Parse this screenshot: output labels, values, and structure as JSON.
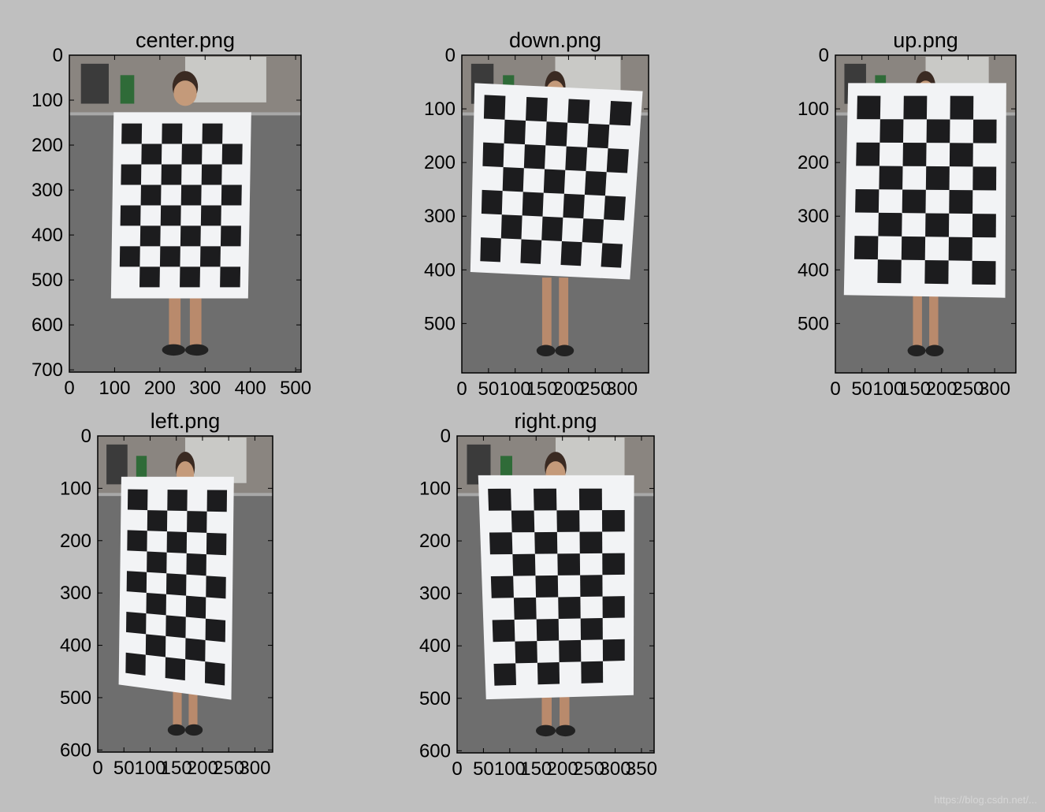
{
  "figure": {
    "background": "#bfbfbf",
    "watermark": "https://blog.csdn.net/..."
  },
  "panels": [
    {
      "id": "center",
      "title": "center.png",
      "image_size": [
        512,
        705
      ],
      "xticks": [
        "0",
        "100",
        "200",
        "300",
        "400",
        "500"
      ],
      "xtick_values": [
        0,
        100,
        200,
        300,
        400,
        500
      ],
      "yticks": [
        "0",
        "100",
        "200",
        "300",
        "400",
        "500",
        "600",
        "700"
      ],
      "ytick_values": [
        0,
        100,
        200,
        300,
        400,
        500,
        600,
        700
      ],
      "board": {
        "corners": [
          [
            98,
            127
          ],
          [
            402,
            127
          ],
          [
            395,
            541
          ],
          [
            92,
            541
          ]
        ],
        "cols": 6,
        "rows": 8
      }
    },
    {
      "id": "down",
      "title": "down.png",
      "image_size": [
        350,
        592
      ],
      "xticks": [
        "0",
        "50",
        "100",
        "150",
        "200",
        "250",
        "300"
      ],
      "xtick_values": [
        0,
        50,
        100,
        150,
        200,
        250,
        300
      ],
      "yticks": [
        "0",
        "100",
        "200",
        "300",
        "400",
        "500"
      ],
      "ytick_values": [
        0,
        100,
        200,
        300,
        400,
        500
      ],
      "board": {
        "corners": [
          [
            24,
            52
          ],
          [
            339,
            67
          ],
          [
            315,
            418
          ],
          [
            16,
            404
          ]
        ],
        "cols": 7,
        "rows": 7
      }
    },
    {
      "id": "up",
      "title": "up.png",
      "image_size": [
        340,
        592
      ],
      "xticks": [
        "0",
        "50",
        "100",
        "150",
        "200",
        "250",
        "300"
      ],
      "xtick_values": [
        0,
        50,
        100,
        150,
        200,
        250,
        300
      ],
      "yticks": [
        "0",
        "100",
        "200",
        "300",
        "400",
        "500"
      ],
      "ytick_values": [
        0,
        100,
        200,
        300,
        400,
        500
      ],
      "board": {
        "corners": [
          [
            24,
            52
          ],
          [
            322,
            52
          ],
          [
            320,
            452
          ],
          [
            16,
            447
          ]
        ],
        "cols": 6,
        "rows": 8
      }
    },
    {
      "id": "left",
      "title": "left.png",
      "image_size": [
        334,
        604
      ],
      "xticks": [
        "0",
        "50",
        "100",
        "150",
        "200",
        "250",
        "300"
      ],
      "xtick_values": [
        0,
        50,
        100,
        150,
        200,
        250,
        300
      ],
      "yticks": [
        "0",
        "100",
        "200",
        "300",
        "400",
        "500",
        "600"
      ],
      "ytick_values": [
        0,
        100,
        200,
        300,
        400,
        500,
        600
      ],
      "board": {
        "corners": [
          [
            45,
            78
          ],
          [
            260,
            78
          ],
          [
            255,
            504
          ],
          [
            40,
            475
          ]
        ],
        "cols": 5,
        "rows": 9
      }
    },
    {
      "id": "right",
      "title": "right.png",
      "image_size": [
        374,
        604
      ],
      "xticks": [
        "0",
        "50",
        "100",
        "150",
        "200",
        "250",
        "300",
        "350"
      ],
      "xtick_values": [
        0,
        50,
        100,
        150,
        200,
        250,
        300,
        350
      ],
      "yticks": [
        "0",
        "100",
        "200",
        "300",
        "400",
        "500",
        "600"
      ],
      "ytick_values": [
        0,
        100,
        200,
        300,
        400,
        500,
        600
      ],
      "board": {
        "corners": [
          [
            40,
            75
          ],
          [
            336,
            75
          ],
          [
            335,
            494
          ],
          [
            55,
            502
          ]
        ],
        "cols": 6,
        "rows": 9
      }
    }
  ]
}
